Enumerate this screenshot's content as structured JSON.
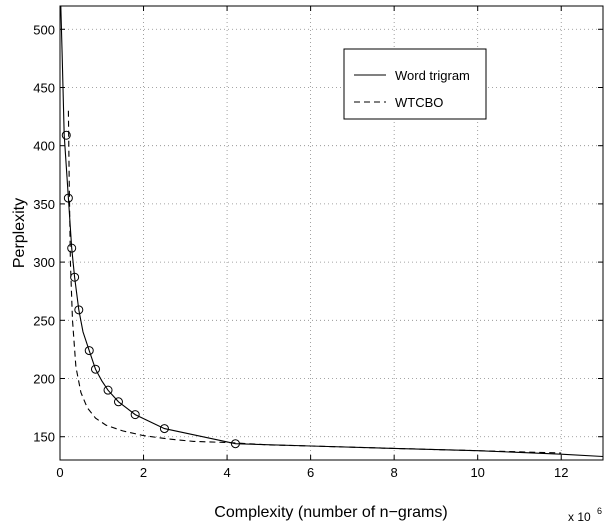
{
  "chart_data": {
    "type": "line",
    "title": "",
    "xlabel": "Complexity (number of n−grams)",
    "ylabel": "Perplexity",
    "x_scale_base": "x 10",
    "x_scale_exp": "6",
    "xlim": [
      0,
      13
    ],
    "ylim": [
      130,
      520
    ],
    "xticks": [
      0,
      2,
      4,
      6,
      8,
      10,
      12
    ],
    "xtick_labels": [
      "0",
      "2",
      "4",
      "6",
      "8",
      "10",
      "12"
    ],
    "yticks": [
      150,
      200,
      250,
      300,
      350,
      400,
      450,
      500
    ],
    "ytick_labels": [
      "150",
      "200",
      "250",
      "300",
      "350",
      "400",
      "450",
      "500"
    ],
    "grid": true,
    "legend_position": "top-right",
    "series": [
      {
        "name": "Word trigram",
        "style": "solid",
        "color": "#000000",
        "x": [
          0.02,
          0.05,
          0.1,
          0.2,
          0.28,
          0.35,
          0.45,
          0.55,
          0.7,
          0.85,
          1.0,
          1.15,
          1.4,
          1.8,
          2.5,
          4.2,
          6.0,
          8.0,
          10.0,
          12.0,
          13.0
        ],
        "y": [
          520,
          480,
          409,
          355,
          312,
          287,
          259,
          240,
          224,
          208,
          198,
          190,
          180,
          169,
          157,
          144,
          142,
          140,
          138,
          135,
          133
        ],
        "markers_x": [
          0.15,
          0.2,
          0.28,
          0.35,
          0.45,
          0.7,
          0.85,
          1.15,
          1.4,
          1.8,
          2.5,
          4.2
        ],
        "markers_y": [
          409,
          355,
          312,
          287,
          259,
          224,
          208,
          190,
          180,
          169,
          157,
          144
        ]
      },
      {
        "name": "WTCBO",
        "style": "dashed",
        "color": "#000000",
        "x": [
          0.2,
          0.22,
          0.25,
          0.3,
          0.38,
          0.5,
          0.65,
          0.85,
          1.1,
          1.5,
          2.0,
          2.6,
          3.2,
          4.0,
          5.0,
          6.0,
          8.0,
          10.0,
          12.0
        ],
        "y": [
          430,
          370,
          300,
          250,
          210,
          188,
          175,
          166,
          160,
          155,
          151,
          148,
          146,
          145,
          143,
          142,
          140,
          138,
          136
        ]
      }
    ]
  }
}
